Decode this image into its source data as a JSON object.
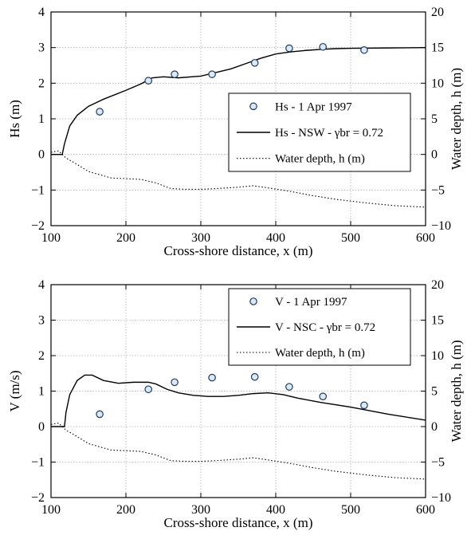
{
  "chart_data": [
    {
      "type": "line",
      "xlabel": "Cross-shore distance, x (m)",
      "ylabel": "Hs (m)",
      "y2label": "Water depth, h (m)",
      "xlim": [
        100,
        600
      ],
      "ylim": [
        -2,
        4
      ],
      "y2lim": [
        -10,
        20
      ],
      "xticks": [
        "100",
        "200",
        "300",
        "400",
        "500",
        "600"
      ],
      "yticks": [
        "−2",
        "−1",
        "0",
        "1",
        "2",
        "3",
        "4"
      ],
      "y2ticks": [
        "−10",
        "−5",
        "0",
        "5",
        "10",
        "15",
        "20"
      ],
      "grid": true,
      "legend_position": "right",
      "observed": {
        "name": "Hs - 1 Apr 1997",
        "x": [
          165,
          230,
          265,
          315,
          372,
          418,
          463,
          518
        ],
        "y": [
          1.2,
          2.07,
          2.25,
          2.25,
          2.57,
          2.98,
          3.02,
          2.93
        ]
      },
      "model": {
        "name": "Hs - NSW - γbr = 0.72",
        "x": [
          100,
          115,
          118,
          125,
          135,
          150,
          170,
          200,
          220,
          235,
          250,
          270,
          300,
          320,
          340,
          360,
          380,
          400,
          420,
          440,
          460,
          480,
          500,
          550,
          600
        ],
        "y": [
          0,
          0,
          0.3,
          0.8,
          1.1,
          1.35,
          1.55,
          1.8,
          1.98,
          2.15,
          2.18,
          2.15,
          2.2,
          2.3,
          2.4,
          2.55,
          2.7,
          2.82,
          2.88,
          2.92,
          2.95,
          2.97,
          2.98,
          2.99,
          3.0
        ]
      },
      "depth": {
        "name": "Water depth, h (m)",
        "x": [
          100,
          110,
          115,
          120,
          130,
          150,
          180,
          220,
          240,
          260,
          280,
          300,
          320,
          350,
          370,
          390,
          420,
          450,
          480,
          520,
          560,
          600
        ],
        "y": [
          0.3,
          0.5,
          0,
          -0.5,
          -1.1,
          -2.4,
          -3.3,
          -3.5,
          -4.0,
          -4.8,
          -4.9,
          -4.9,
          -4.8,
          -4.6,
          -4.4,
          -4.7,
          -5.2,
          -5.8,
          -6.3,
          -6.8,
          -7.2,
          -7.4
        ]
      }
    },
    {
      "type": "line",
      "xlabel": "Cross-shore distance, x (m)",
      "ylabel": "V (m/s)",
      "y2label": "Water depth, h (m)",
      "xlim": [
        100,
        600
      ],
      "ylim": [
        -2,
        4
      ],
      "y2lim": [
        -10,
        20
      ],
      "xticks": [
        "100",
        "200",
        "300",
        "400",
        "500",
        "600"
      ],
      "yticks": [
        "−2",
        "−1",
        "0",
        "1",
        "2",
        "3",
        "4"
      ],
      "y2ticks": [
        "−10",
        "−5",
        "0",
        "5",
        "10",
        "15",
        "20"
      ],
      "grid": true,
      "legend_position": "top-right",
      "observed": {
        "name": "V - 1 Apr 1997",
        "x": [
          165,
          230,
          265,
          315,
          372,
          418,
          463,
          518
        ],
        "y": [
          0.35,
          1.05,
          1.25,
          1.38,
          1.4,
          1.12,
          0.85,
          0.6
        ]
      },
      "model": {
        "name": "V - NSC - γbr = 0.72",
        "x": [
          100,
          118,
          120,
          125,
          135,
          145,
          155,
          170,
          190,
          210,
          230,
          240,
          255,
          270,
          290,
          310,
          330,
          350,
          370,
          390,
          410,
          430,
          460,
          500,
          550,
          600
        ],
        "y": [
          0,
          0,
          0.4,
          0.9,
          1.3,
          1.45,
          1.45,
          1.3,
          1.22,
          1.25,
          1.25,
          1.2,
          1.05,
          0.95,
          0.88,
          0.85,
          0.85,
          0.88,
          0.93,
          0.95,
          0.9,
          0.8,
          0.68,
          0.55,
          0.35,
          0.18
        ]
      },
      "depth": {
        "name": "Water depth, h (m)",
        "x": [
          100,
          110,
          115,
          120,
          130,
          150,
          180,
          220,
          240,
          260,
          280,
          300,
          320,
          350,
          370,
          390,
          420,
          450,
          480,
          520,
          560,
          600
        ],
        "y": [
          0.3,
          0.5,
          0,
          -0.5,
          -1.1,
          -2.4,
          -3.3,
          -3.5,
          -4.0,
          -4.8,
          -4.9,
          -4.9,
          -4.8,
          -4.6,
          -4.4,
          -4.7,
          -5.2,
          -5.8,
          -6.3,
          -6.8,
          -7.2,
          -7.4
        ]
      }
    }
  ],
  "colors": {
    "observed_fill": "#dbe8f5",
    "observed_stroke": "#1f3a5f",
    "model_line": "#000000",
    "depth_line": "#000000",
    "grid": "#b0b0b0"
  }
}
